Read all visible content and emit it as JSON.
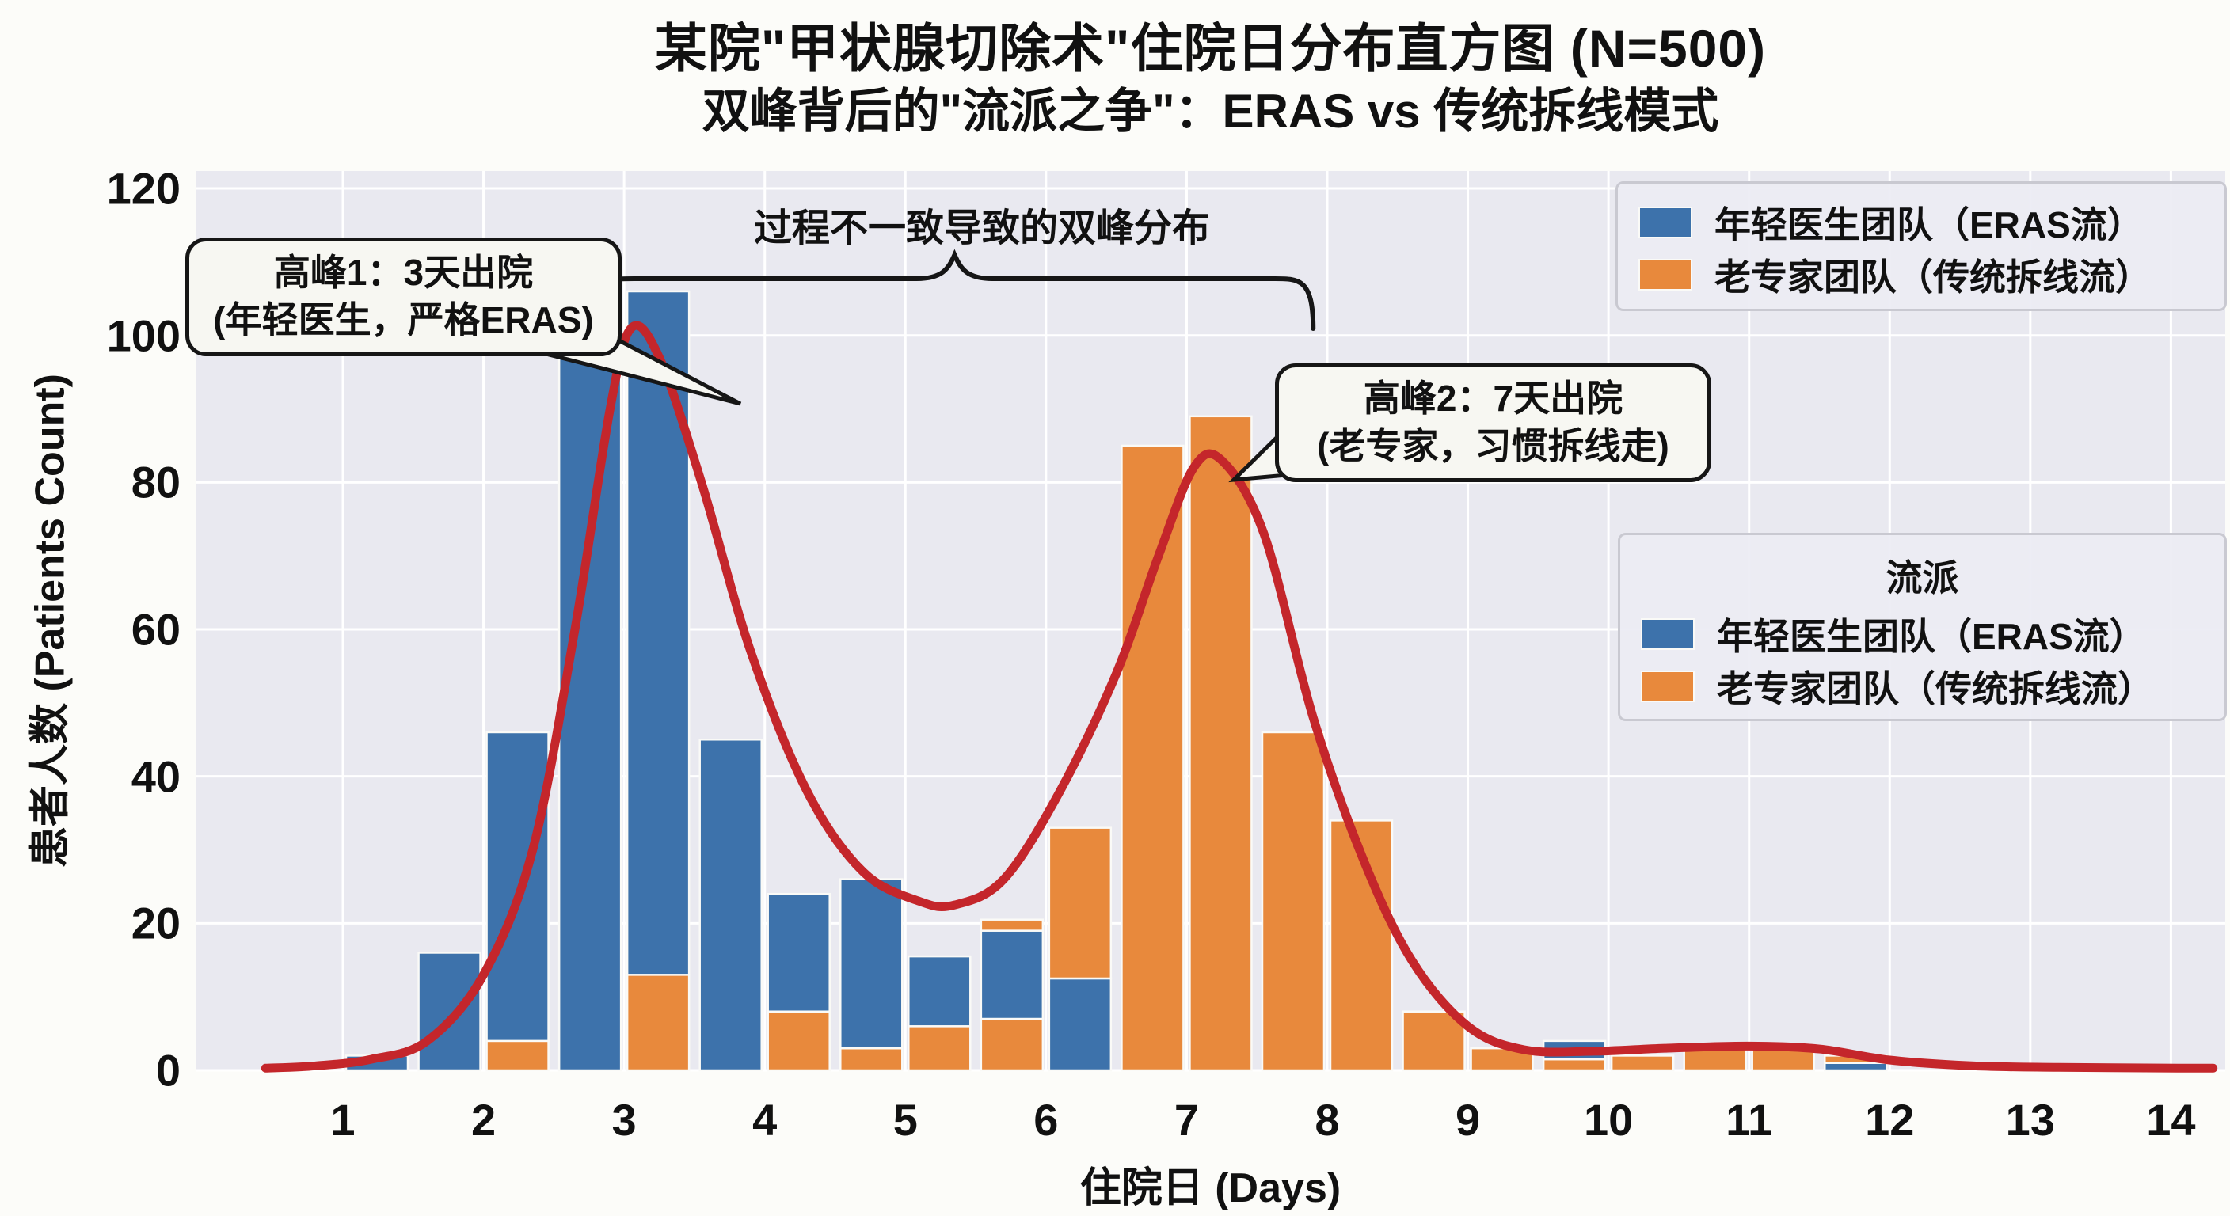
{
  "title": "某院\"甲状腺切除术\"住院日分布直方图 (N=500)",
  "subtitle": "双峰背后的\"流派之争\"：ERAS vs 传统拆线模式",
  "axes": {
    "xlabel": "住院日 (Days)",
    "ylabel": "患者人数 (Patients Count)",
    "x_ticks": [
      1,
      2,
      3,
      4,
      5,
      6,
      7,
      8,
      9,
      10,
      11,
      12,
      13,
      14
    ],
    "y_ticks": [
      0,
      20,
      40,
      60,
      80,
      100,
      120
    ],
    "ylim": [
      0,
      123
    ],
    "grid": "white on light-gray panel"
  },
  "colors": {
    "blue": "#3d72ab",
    "orange": "#e8893c",
    "red": "#c4262b",
    "plot_bg": "#e9e9f0",
    "grid": "#ffffff",
    "bar_edge": "#fafaf7",
    "figure_bg": "#fcfcf9"
  },
  "legend_top": {
    "items": [
      {
        "label": "年轻医生团队（ERAS流）",
        "color": "blue"
      },
      {
        "label": "老专家团队（传统拆线流）",
        "color": "orange"
      }
    ]
  },
  "legend_mid": {
    "title": "流派",
    "items": [
      {
        "label": "年轻医生团队（ERAS流）",
        "color": "blue"
      },
      {
        "label": "老专家团队（传统拆线流）",
        "color": "orange"
      }
    ]
  },
  "annotations": {
    "peak1_line1": "高峰1：3天出院",
    "peak1_line2": "(年轻医生，严格ERAS)",
    "peak2_line1": "高峰2：7天出院",
    "peak2_line2": "(老专家，习惯拆线走)",
    "brace_label": "过程不一致导致的双峰分布"
  },
  "chart_data": {
    "type": "bar",
    "subtype": "stacked-histogram with KDE line",
    "bin_width_days": 0.5,
    "series_names": [
      "年轻医生团队（ERAS流）",
      "老专家团队（传统拆线流）"
    ],
    "bars": [
      {
        "day": 1,
        "side": "right",
        "segments": [
          [
            "blue",
            2
          ]
        ]
      },
      {
        "day": 2,
        "side": "left",
        "segments": [
          [
            "blue",
            16
          ]
        ]
      },
      {
        "day": 2,
        "side": "right",
        "segments": [
          [
            "orange",
            4
          ],
          [
            "blue",
            42
          ]
        ]
      },
      {
        "day": 3,
        "side": "left",
        "segments": [
          [
            "blue",
            100
          ]
        ]
      },
      {
        "day": 3,
        "side": "right",
        "segments": [
          [
            "orange",
            13
          ],
          [
            "blue",
            93
          ]
        ]
      },
      {
        "day": 4,
        "side": "left",
        "segments": [
          [
            "blue",
            45
          ]
        ]
      },
      {
        "day": 4,
        "side": "right",
        "segments": [
          [
            "orange",
            8
          ],
          [
            "blue",
            16
          ]
        ]
      },
      {
        "day": 5,
        "side": "left",
        "segments": [
          [
            "orange",
            3
          ],
          [
            "blue",
            23
          ]
        ]
      },
      {
        "day": 5,
        "side": "right",
        "segments": [
          [
            "orange",
            6
          ],
          [
            "blue",
            9.5
          ]
        ]
      },
      {
        "day": 6,
        "side": "left",
        "segments": [
          [
            "orange",
            7
          ],
          [
            "blue",
            12
          ],
          [
            "orange",
            1.5
          ]
        ]
      },
      {
        "day": 6,
        "side": "right",
        "segments": [
          [
            "blue",
            12.5
          ],
          [
            "orange",
            20.5
          ]
        ]
      },
      {
        "day": 7,
        "side": "left",
        "segments": [
          [
            "orange",
            85
          ]
        ]
      },
      {
        "day": 7,
        "side": "right",
        "segments": [
          [
            "orange",
            89
          ]
        ]
      },
      {
        "day": 8,
        "side": "left",
        "segments": [
          [
            "orange",
            46
          ]
        ]
      },
      {
        "day": 8,
        "side": "right",
        "segments": [
          [
            "orange",
            34
          ]
        ]
      },
      {
        "day": 9,
        "side": "left",
        "segments": [
          [
            "orange",
            8
          ]
        ]
      },
      {
        "day": 9,
        "side": "right",
        "segments": [
          [
            "orange",
            3
          ]
        ]
      },
      {
        "day": 10,
        "side": "left",
        "segments": [
          [
            "orange",
            1.5
          ],
          [
            "blue",
            2.5
          ]
        ]
      },
      {
        "day": 10,
        "side": "right",
        "segments": [
          [
            "orange",
            2
          ]
        ]
      },
      {
        "day": 11,
        "side": "left",
        "segments": [
          [
            "orange",
            3
          ]
        ]
      },
      {
        "day": 11,
        "side": "right",
        "segments": [
          [
            "orange",
            3
          ]
        ]
      },
      {
        "day": 12,
        "side": "left",
        "segments": [
          [
            "blue",
            1
          ],
          [
            "orange",
            1
          ]
        ]
      }
    ],
    "kde_curve_points": [
      [
        0.45,
        0.3
      ],
      [
        0.8,
        0.6
      ],
      [
        1.2,
        1.5
      ],
      [
        1.6,
        4
      ],
      [
        2.0,
        13
      ],
      [
        2.35,
        30
      ],
      [
        2.65,
        60
      ],
      [
        2.9,
        90
      ],
      [
        3.05,
        101
      ],
      [
        3.25,
        97
      ],
      [
        3.55,
        80
      ],
      [
        3.9,
        57
      ],
      [
        4.3,
        38
      ],
      [
        4.7,
        27
      ],
      [
        5.1,
        23
      ],
      [
        5.35,
        22.5
      ],
      [
        5.7,
        26
      ],
      [
        6.1,
        38
      ],
      [
        6.5,
        54
      ],
      [
        6.8,
        70
      ],
      [
        7.05,
        82
      ],
      [
        7.25,
        83
      ],
      [
        7.55,
        73
      ],
      [
        7.9,
        48
      ],
      [
        8.25,
        29
      ],
      [
        8.6,
        15
      ],
      [
        9.0,
        6
      ],
      [
        9.4,
        2.8
      ],
      [
        9.9,
        2.6
      ],
      [
        10.4,
        3.0
      ],
      [
        11.0,
        3.3
      ],
      [
        11.5,
        2.9
      ],
      [
        12.0,
        1.4
      ],
      [
        12.6,
        0.6
      ],
      [
        13.2,
        0.4
      ],
      [
        14.05,
        0.3
      ],
      [
        14.3,
        0.3
      ]
    ],
    "kde_peaks": [
      {
        "day": 3,
        "value": 101
      },
      {
        "day": 7,
        "value": 83
      }
    ],
    "brace_span_days": [
      2.8,
      7.9
    ]
  }
}
